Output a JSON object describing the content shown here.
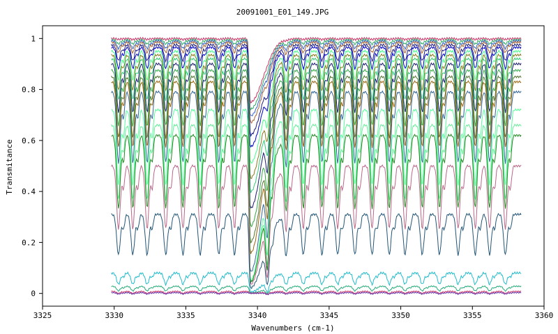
{
  "chart_data": {
    "type": "line",
    "title": "20091001_E01_149.JPG",
    "xlabel": "Wavenumbers (cm-1)",
    "ylabel": "Transmitance",
    "xlim": [
      3325,
      3360
    ],
    "ylim": [
      -0.05,
      1.05
    ],
    "xticks": [
      3325,
      3330,
      3335,
      3340,
      3345,
      3350,
      3355,
      3360
    ],
    "yticks": [
      0,
      0.2,
      0.4,
      0.6,
      0.8,
      1
    ],
    "ytick_labels": [
      "0",
      "0.2",
      "0.4",
      "0.6",
      "0.8",
      "1"
    ],
    "grid": false,
    "legend": "none",
    "x_range": [
      3329.8,
      3358.4
    ],
    "absorption_lines": [
      3330.3,
      3331.3,
      3332.3,
      3333.6,
      3334.8,
      3336.0,
      3337.3,
      3338.4,
      3340.7,
      3342.0,
      3343.2,
      3344.5,
      3345.6,
      3346.8,
      3348.0,
      3349.2,
      3350.3,
      3351.5,
      3352.7,
      3354.0,
      3355.2,
      3356.2,
      3357.3
    ],
    "main_line": 3339.5,
    "series": [
      {
        "baseline": 1.0,
        "color": "#cc3366"
      },
      {
        "baseline": 0.995,
        "color": "#33aa66"
      },
      {
        "baseline": 0.99,
        "color": "#3366cc"
      },
      {
        "baseline": 0.985,
        "color": "#aa6633"
      },
      {
        "baseline": 0.975,
        "color": "#1a1a80"
      },
      {
        "baseline": 0.965,
        "color": "#0000cc"
      },
      {
        "baseline": 0.95,
        "color": "#44ff88"
      },
      {
        "baseline": 0.935,
        "color": "#8a7a20"
      },
      {
        "baseline": 0.92,
        "color": "#33cc77"
      },
      {
        "baseline": 0.9,
        "color": "#1a1a70"
      },
      {
        "baseline": 0.875,
        "color": "#33aa44"
      },
      {
        "baseline": 0.85,
        "color": "#557733"
      },
      {
        "baseline": 0.83,
        "color": "#996611"
      },
      {
        "baseline": 0.79,
        "color": "#336699"
      },
      {
        "baseline": 0.72,
        "color": "#55ff99"
      },
      {
        "baseline": 0.66,
        "color": "#66ee99"
      },
      {
        "baseline": 0.62,
        "color": "#228822"
      },
      {
        "baseline": 0.5,
        "color": "#bb6688"
      },
      {
        "baseline": 0.31,
        "color": "#225577"
      },
      {
        "baseline": 0.08,
        "color": "#22bbcc"
      },
      {
        "baseline": 0.028,
        "color": "#22aa77"
      },
      {
        "baseline": 0.008,
        "color": "#cc3366"
      },
      {
        "baseline": 0.003,
        "color": "#6633aa"
      }
    ]
  }
}
